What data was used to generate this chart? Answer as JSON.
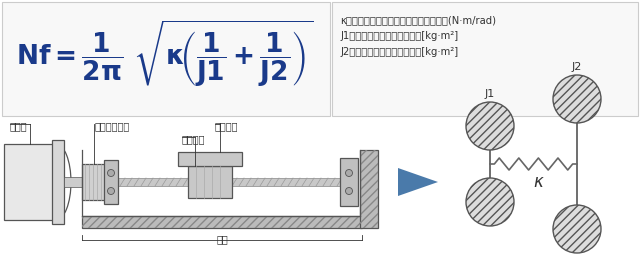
{
  "bg_color": "#ffffff",
  "border_color": "#cccccc",
  "formula_color": "#1a3a8a",
  "text_color": "#333333",
  "legend_lines": [
    "κ：カップリングの動的ねじりばね定数(N·m/rad)",
    "J1：駆動側の慣性モーメント[kg·m²]",
    "J2：従動側の慣性モーメント[kg·m²]"
  ],
  "arrow_color": "#4a7aaa",
  "line_color": "#555555",
  "hatch_color": "#888888",
  "spring_color": "#666666"
}
